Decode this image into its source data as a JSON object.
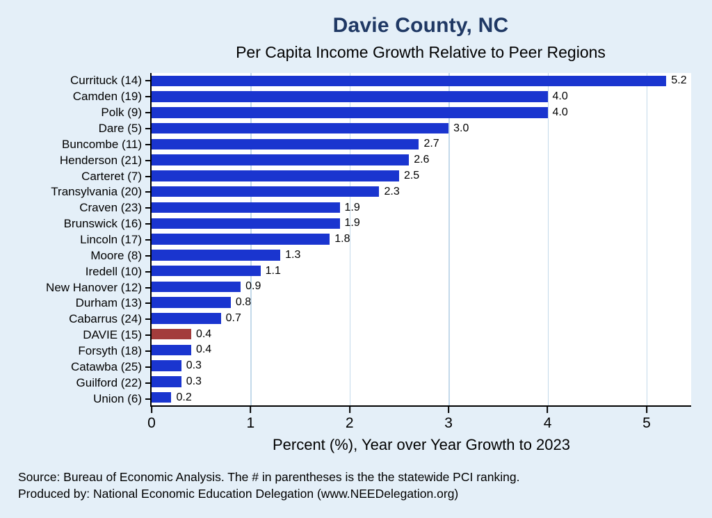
{
  "title": "Davie County, NC",
  "subtitle": "Per Capita Income Growth Relative to Peer Regions",
  "chart_data": {
    "type": "bar",
    "orientation": "horizontal",
    "title": "Davie County, NC",
    "subtitle": "Per Capita Income Growth Relative to Peer Regions",
    "categories": [
      "Currituck (14)",
      "Camden (19)",
      "Polk  (9)",
      "Dare  (5)",
      "Buncombe (11)",
      "Henderson (21)",
      "Carteret  (7)",
      "Transylvania (20)",
      "Craven (23)",
      "Brunswick (16)",
      "Lincoln (17)",
      "Moore  (8)",
      "Iredell (10)",
      "New Hanover (12)",
      "Durham (13)",
      "Cabarrus (24)",
      "DAVIE (15)",
      "Forsyth (18)",
      "Catawba (25)",
      "Guilford (22)",
      "Union  (6)"
    ],
    "values": [
      5.2,
      4.0,
      4.0,
      3.0,
      2.7,
      2.6,
      2.5,
      2.3,
      1.9,
      1.9,
      1.8,
      1.3,
      1.1,
      0.9,
      0.8,
      0.7,
      0.4,
      0.4,
      0.3,
      0.3,
      0.2
    ],
    "value_labels": [
      "5.2",
      "4.0",
      "4.0",
      "3.0",
      "2.7",
      "2.6",
      "2.5",
      "2.3",
      "1.9",
      "1.9",
      "1.8",
      "1.3",
      "1.1",
      "0.9",
      "0.8",
      "0.7",
      "0.4",
      "0.4",
      "0.3",
      "0.3",
      "0.2"
    ],
    "highlight_category": "DAVIE (15)",
    "highlight_index": 16,
    "xlabel": "Percent (%), Year over Year Growth to 2023",
    "xticks": [
      0,
      1,
      2,
      3,
      4,
      5
    ],
    "xlim": [
      0,
      5.45
    ],
    "grid": true,
    "legend": "none",
    "bar_color": "#1a35cf",
    "highlight_color": "#a33c3c",
    "background_color": "#e4eff8",
    "plot_background_color": "#ffffff",
    "gridline_color": "#c3d9ea",
    "title_color": "#1f3864"
  },
  "footer": {
    "line1": "Source: Bureau of Economic Analysis. The # in parentheses is the the statewide PCI ranking.",
    "line2": "Produced by: National Economic Education Delegation (www.NEEDelegation.org)"
  }
}
